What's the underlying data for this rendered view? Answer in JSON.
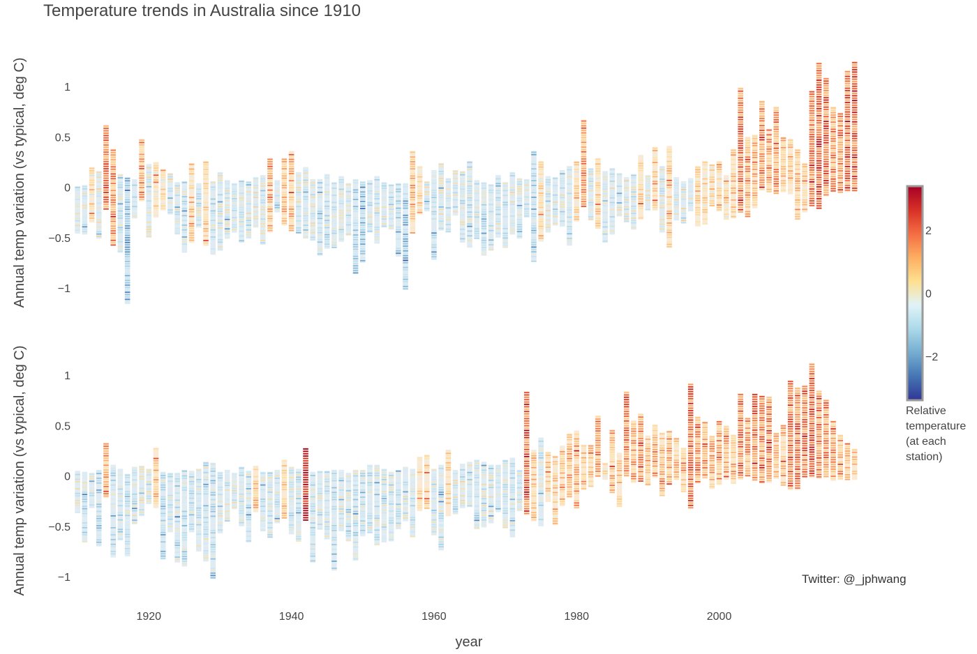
{
  "chart_data": {
    "type": "bar",
    "title": "Temperature trends in Australia since 1910",
    "xlabel": "year",
    "ylabel": "Annual temp variation (vs typical, deg C)",
    "credit": "Twitter: @_jphwang",
    "xlim": [
      1909.4,
      2020.6
    ],
    "xticks": [
      1920,
      1940,
      1960,
      1980,
      2000
    ],
    "ylim": [
      -1.25,
      1.35
    ],
    "yticks": [
      -1,
      -0.5,
      0,
      0.5,
      1
    ],
    "colorbar": {
      "label": [
        "Relative",
        "temperature",
        "(at each",
        "station)"
      ],
      "range": [
        -3.4,
        3.4
      ],
      "ticks": [
        -2,
        0,
        2
      ],
      "colors": [
        "#313695",
        "#4575b4",
        "#74add1",
        "#abd9e9",
        "#e0f3f8",
        "#fee090",
        "#fdae61",
        "#f46d43",
        "#d73027",
        "#a50026"
      ]
    },
    "series": [
      {
        "year_start": 1910,
        "minimum": [
          -0.46,
          -0.47,
          -0.35,
          -0.51,
          -0.22,
          -0.58,
          -0.65,
          -1.16,
          -0.31,
          -0.14,
          -0.5,
          -0.3,
          -0.23,
          -0.27,
          -0.47,
          -0.65,
          -0.55,
          -0.4,
          -0.58,
          -0.67,
          -0.63,
          -0.51,
          -0.45,
          -0.55,
          -0.51,
          -0.4,
          -0.57,
          -0.45,
          -0.25,
          -0.38,
          -0.44,
          -0.46,
          -0.51,
          -0.53,
          -0.68,
          -0.61,
          -0.6,
          -0.54,
          -0.48,
          -0.86,
          -0.75,
          -0.45,
          -0.56,
          -0.4,
          -0.42,
          -0.69,
          -1.02,
          -0.46,
          -0.27,
          -0.24,
          -0.72,
          -0.43,
          -0.45,
          -0.28,
          -0.55,
          -0.6,
          -0.51,
          -0.68,
          -0.63,
          -0.5,
          -0.6,
          -0.47,
          -0.51,
          -0.3,
          -0.74,
          -0.54,
          -0.45,
          -0.38,
          -0.39,
          -0.58,
          -0.34,
          -0.2,
          -0.33,
          -0.41,
          -0.55,
          -0.47,
          -0.29,
          -0.35,
          -0.42,
          -0.32,
          -0.23,
          -0.23,
          -0.45,
          -0.6,
          -0.33,
          -0.36,
          -0.24,
          -0.39,
          -0.37,
          -0.19,
          -0.24,
          -0.32,
          -0.31,
          -0.25,
          -0.3,
          -0.21,
          -0.03,
          -0.05,
          -0.07,
          -0.05,
          -0.07,
          -0.32,
          -0.25,
          -0.19,
          -0.22,
          -0.09,
          -0.05,
          -0.06,
          -0.05,
          -0.04
        ],
        "maximum": [
          0.01,
          0.02,
          0.2,
          0.16,
          0.62,
          0.38,
          0.13,
          0.1,
          0.08,
          0.48,
          0.23,
          0.25,
          0.18,
          0.14,
          0.05,
          0.06,
          0.24,
          0.04,
          0.26,
          0.06,
          0.15,
          0.07,
          0.04,
          0.07,
          0.06,
          0.1,
          0.12,
          0.29,
          0.07,
          0.29,
          0.36,
          0.15,
          0.2,
          0.08,
          0.08,
          0.13,
          0.05,
          0.11,
          0.04,
          0.08,
          0.06,
          0.07,
          0.11,
          0.05,
          0.03,
          0.04,
          0.04,
          0.36,
          0.21,
          0.06,
          0.17,
          0.24,
          0.09,
          0.17,
          0.16,
          0.26,
          0.07,
          0.05,
          0.03,
          0.12,
          0.05,
          0.15,
          0.09,
          0.08,
          0.36,
          0.26,
          0.11,
          0.1,
          0.17,
          0.21,
          0.26,
          0.67,
          0.19,
          0.29,
          0.16,
          0.19,
          0.14,
          0.1,
          0.13,
          0.32,
          0.12,
          0.4,
          0.21,
          0.41,
          0.1,
          0.06,
          0.09,
          0.21,
          0.26,
          0.23,
          0.26,
          0.12,
          0.38,
          0.99,
          0.5,
          0.52,
          0.86,
          0.58,
          0.8,
          0.5,
          0.48,
          0.38,
          0.24,
          0.96,
          1.24,
          1.09,
          0.8,
          0.74,
          1.16,
          1.25
        ],
        "colorbar_mean": [
          -0.3,
          -0.3,
          0.1,
          -0.2,
          1.8,
          1.4,
          -0.5,
          -1.5,
          -0.4,
          1.2,
          -0.3,
          0.2,
          0.1,
          -0.1,
          -0.3,
          -0.6,
          0.6,
          -0.3,
          0.4,
          -0.5,
          -0.3,
          -0.3,
          -0.3,
          -0.4,
          -0.3,
          -0.2,
          -0.3,
          0.8,
          -0.3,
          0.7,
          0.9,
          -0.3,
          -0.3,
          -0.3,
          -0.6,
          -0.4,
          -0.5,
          -0.4,
          -0.4,
          -0.8,
          -1.2,
          -0.4,
          -0.4,
          -0.3,
          -0.3,
          -0.7,
          -1.3,
          0.8,
          0.4,
          -0.2,
          -0.5,
          -0.3,
          -0.3,
          -0.3,
          -0.4,
          -0.5,
          -0.4,
          -0.6,
          -0.5,
          -0.4,
          -0.4,
          -0.3,
          -0.4,
          -0.3,
          -0.7,
          0.2,
          -0.3,
          -0.3,
          -0.3,
          -0.4,
          0.2,
          1.4,
          -0.2,
          0.4,
          -0.3,
          -0.3,
          -0.2,
          -0.2,
          -0.2,
          0.4,
          -0.2,
          0.6,
          -0.2,
          0.5,
          -0.2,
          -0.1,
          -0.2,
          0.3,
          0.3,
          0.3,
          0.3,
          0.2,
          0.7,
          1.8,
          1.0,
          1.0,
          1.4,
          1.1,
          1.5,
          1.0,
          1.0,
          0.8,
          0.5,
          1.7,
          2.1,
          1.9,
          1.4,
          1.4,
          1.9,
          2.1
        ]
      },
      {
        "year_start": 1910,
        "minimum": [
          -0.37,
          -0.66,
          -0.32,
          -0.7,
          -0.22,
          -0.81,
          -0.64,
          -0.8,
          -0.48,
          -0.4,
          -0.28,
          -0.32,
          -0.83,
          -0.56,
          -0.86,
          -0.9,
          -0.56,
          -0.75,
          -0.85,
          -1.02,
          -0.57,
          -0.45,
          -0.33,
          -0.5,
          -0.66,
          -0.36,
          -0.55,
          -0.61,
          -0.47,
          -0.42,
          -0.58,
          -0.65,
          -0.44,
          -0.86,
          -0.53,
          -0.63,
          -0.94,
          -0.55,
          -0.65,
          -0.84,
          -0.6,
          -0.57,
          -0.69,
          -0.66,
          -0.65,
          -0.53,
          -0.45,
          -0.61,
          -0.35,
          -0.33,
          -0.59,
          -0.74,
          -0.4,
          -0.38,
          -0.32,
          -0.31,
          -0.53,
          -0.51,
          -0.47,
          -0.36,
          -0.52,
          -0.61,
          -0.35,
          -0.39,
          -0.45,
          -0.5,
          -0.26,
          -0.49,
          -0.3,
          -0.22,
          -0.32,
          -0.14,
          -0.11,
          -0.01,
          -0.04,
          -0.17,
          -0.31,
          -0.01,
          -0.07,
          -0.06,
          -0.1,
          -0.02,
          -0.2,
          -0.09,
          -0.04,
          -0.16,
          -0.32,
          -0.08,
          -0.03,
          -0.13,
          -0.09,
          -0.04,
          -0.08,
          -0.04,
          -0.01,
          -0.05,
          -0.08,
          -0.07,
          -0.03,
          -0.1,
          -0.14,
          -0.14,
          -0.02,
          -0.02,
          -0.03,
          -0.02,
          -0.05,
          -0.04,
          -0.04,
          -0.04
        ],
        "maximum": [
          0.05,
          0.04,
          0.03,
          0.06,
          0.33,
          0.11,
          0.07,
          0.02,
          0.09,
          0.1,
          0.07,
          0.28,
          0.04,
          0.03,
          0.03,
          0.06,
          0.05,
          0.07,
          0.14,
          0.13,
          0.04,
          0.06,
          0.03,
          0.09,
          0.05,
          0.1,
          0.04,
          0.04,
          0.06,
          0.16,
          0.09,
          0.07,
          0.28,
          0.04,
          0.05,
          0.05,
          0.06,
          0.06,
          0.03,
          0.06,
          0.06,
          0.11,
          0.11,
          0.07,
          0.04,
          0.06,
          0.09,
          0.07,
          0.19,
          0.21,
          0.07,
          0.11,
          0.26,
          0.06,
          0.12,
          0.14,
          0.16,
          0.14,
          0.11,
          0.11,
          0.16,
          0.18,
          0.06,
          0.84,
          0.26,
          0.38,
          0.24,
          0.2,
          0.3,
          0.42,
          0.45,
          0.31,
          0.31,
          0.6,
          0.13,
          0.46,
          0.23,
          0.84,
          0.55,
          0.62,
          0.4,
          0.51,
          0.43,
          0.45,
          0.38,
          0.28,
          0.92,
          0.59,
          0.54,
          0.4,
          0.55,
          0.5,
          0.41,
          0.82,
          0.58,
          0.82,
          0.8,
          0.79,
          0.43,
          0.51,
          0.95,
          0.88,
          0.9,
          1.12,
          0.85,
          0.76,
          0.55,
          0.41,
          0.33,
          0.27
        ],
        "colorbar_mean": [
          -0.3,
          -0.5,
          -0.4,
          -0.8,
          1.0,
          -0.7,
          -0.6,
          -0.6,
          -0.4,
          -0.3,
          -0.3,
          0.7,
          -0.6,
          -0.5,
          -0.6,
          -0.6,
          -0.5,
          -0.5,
          -0.5,
          -0.7,
          -0.4,
          -0.3,
          -0.3,
          -0.4,
          -0.5,
          0.6,
          -0.5,
          -0.4,
          -0.4,
          0.5,
          -0.3,
          -0.5,
          3.3,
          -0.6,
          -0.4,
          -0.4,
          -0.7,
          -0.4,
          -0.5,
          -0.6,
          -0.5,
          -0.4,
          -0.5,
          -0.4,
          -0.5,
          -0.4,
          -0.3,
          -0.4,
          0.4,
          0.5,
          -0.4,
          -0.5,
          0.6,
          -0.3,
          -0.2,
          -0.2,
          -0.3,
          -0.3,
          -0.3,
          -0.2,
          -0.3,
          -0.3,
          -0.2,
          2.0,
          0.6,
          -0.5,
          0.5,
          0.4,
          0.6,
          0.9,
          1.0,
          0.6,
          0.7,
          1.3,
          0.3,
          1.0,
          0.5,
          1.8,
          1.2,
          1.4,
          0.9,
          1.2,
          0.9,
          1.0,
          0.8,
          0.6,
          2.0,
          1.3,
          1.2,
          0.9,
          1.2,
          1.1,
          0.9,
          1.8,
          1.2,
          1.8,
          1.6,
          1.6,
          0.8,
          0.9,
          1.8,
          1.8,
          1.8,
          2.2,
          1.6,
          1.5,
          1.1,
          0.8,
          0.6,
          0.5
        ]
      }
    ]
  }
}
